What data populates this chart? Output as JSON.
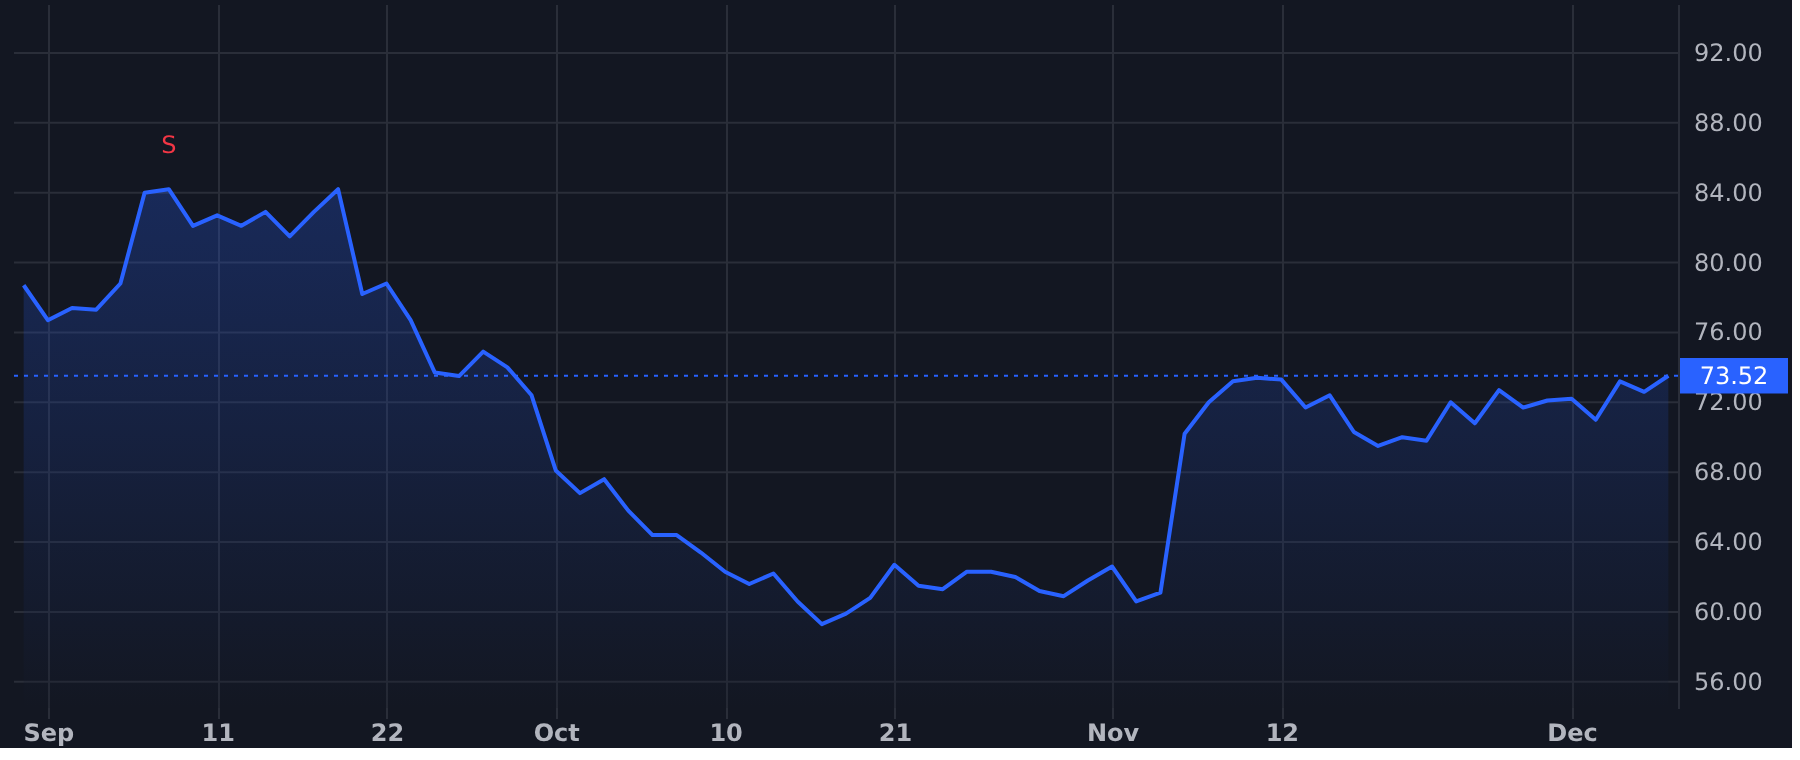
{
  "chart_data": {
    "type": "area",
    "categories": [
      null,
      "Sep",
      null,
      null,
      null,
      null,
      null,
      null,
      "11",
      null,
      null,
      null,
      null,
      null,
      null,
      "22",
      null,
      null,
      null,
      null,
      null,
      null,
      "Oct",
      null,
      null,
      null,
      null,
      null,
      null,
      "10",
      null,
      null,
      null,
      null,
      null,
      null,
      "21",
      null,
      null,
      null,
      null,
      null,
      null,
      null,
      null,
      "Nov",
      null,
      null,
      null,
      null,
      null,
      null,
      "12",
      null,
      null,
      null,
      null,
      null,
      null,
      null,
      null,
      null,
      null,
      null,
      "Dec",
      null,
      null,
      null,
      null
    ],
    "series": [
      {
        "color": "#2962ff",
        "values": [
          78.7,
          76.7,
          77.4,
          77.3,
          78.8,
          84.0,
          84.2,
          82.1,
          82.7,
          82.1,
          82.9,
          81.5,
          82.9,
          84.2,
          78.2,
          78.8,
          76.7,
          73.7,
          73.5,
          74.9,
          74.0,
          72.4,
          68.1,
          66.8,
          67.6,
          65.8,
          64.4,
          64.4,
          63.4,
          62.3,
          61.6,
          62.2,
          60.6,
          59.3,
          59.9,
          60.8,
          62.7,
          61.5,
          61.3,
          62.3,
          62.3,
          62.0,
          61.2,
          60.9,
          61.8,
          62.6,
          60.6,
          61.1,
          70.2,
          72.0,
          73.2,
          73.4,
          73.3,
          71.7,
          72.4,
          70.3,
          69.5,
          70.0,
          69.8,
          72.0,
          70.8,
          72.7,
          71.7,
          72.1,
          72.2,
          71.0,
          73.2,
          72.6,
          73.52
        ]
      }
    ],
    "ylim": [
      54.5,
      94.8
    ],
    "yticks": [
      {
        "value": 56,
        "label": "56.00"
      },
      {
        "value": 60,
        "label": "60.00"
      },
      {
        "value": 64,
        "label": "64.00"
      },
      {
        "value": 68,
        "label": "68.00"
      },
      {
        "value": 72,
        "label": "72.00"
      },
      {
        "value": 76,
        "label": "76.00"
      },
      {
        "value": 80,
        "label": "80.00"
      },
      {
        "value": 84,
        "label": "84.00"
      },
      {
        "value": 88,
        "label": "88.00"
      },
      {
        "value": 92,
        "label": "92.00"
      }
    ],
    "ref_lines": [
      {
        "axis": "y",
        "value": 73.52,
        "label": "73.52",
        "color": "#2962ff",
        "line_style": "dotted"
      }
    ],
    "annotations": [
      "S"
    ],
    "grid": true,
    "marker": "none",
    "line_style": "solid"
  }
}
